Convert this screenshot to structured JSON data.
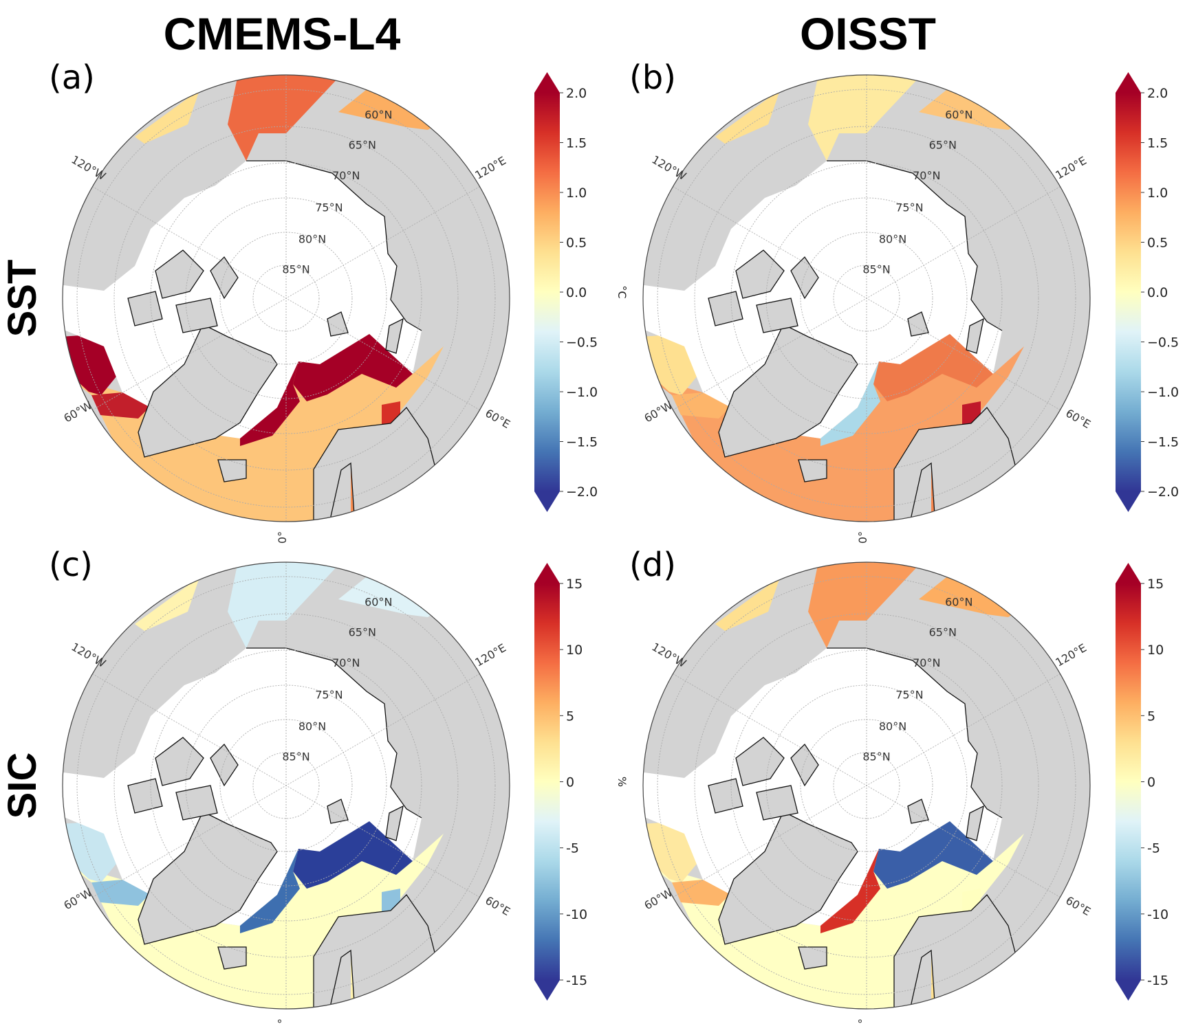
{
  "columns": [
    "CMEMS-L4",
    "OISST"
  ],
  "rows": [
    "SST",
    "SIC"
  ],
  "lat_labels": [
    "60°N",
    "65°N",
    "70°N",
    "75°N",
    "80°N",
    "85°N"
  ],
  "lon_labels": {
    "w120": "120°W",
    "e120": "120°E",
    "w60": "60°W",
    "e60": "60°E",
    "zero": "0°"
  },
  "colorbars": [
    {
      "variable": "SST",
      "unit": "°C",
      "min": -2.0,
      "max": 2.0,
      "extend": "both",
      "ticks": [
        "2.0",
        "1.5",
        "1.0",
        "0.5",
        "0.0",
        "−0.5",
        "−1.0",
        "−1.5",
        "−2.0"
      ]
    },
    {
      "variable": "SIC",
      "unit": "%",
      "min": -15,
      "max": 15,
      "extend": "both",
      "ticks": [
        "15",
        "10",
        "5",
        "0",
        "-5",
        "-10",
        "-15"
      ]
    }
  ],
  "colormap": [
    "#313695",
    "#4575b4",
    "#74add1",
    "#abd9e9",
    "#e0f3f8",
    "#ffffbf",
    "#fee090",
    "#fdae61",
    "#f46d43",
    "#d73027",
    "#a50026"
  ],
  "panels": [
    {
      "label": "(a)",
      "dataset": "CMEMS-L4",
      "variable": "SST",
      "regions": {
        "atlantic": "#fdc57a",
        "pacific": "#ee6a42",
        "okhotsk": "#fcae61",
        "alaska": "#fee090",
        "barents_edge": "#a50026",
        "greenland_edge": "#a50026",
        "baffin": "#c21f2b",
        "hudson": "#a50026",
        "baltic": "#f98e52",
        "whitesea": "#d73027"
      }
    },
    {
      "label": "(b)",
      "dataset": "OISST",
      "variable": "SST",
      "regions": {
        "atlantic": "#f9a064",
        "pacific": "#feeaa0",
        "okhotsk": "#fdc57a",
        "alaska": "#fee090",
        "barents_edge": "#ef7a4a",
        "greenland_edge": "#abd9e9",
        "baffin": "#fdb56a",
        "hudson": "#fee090",
        "baltic": "#f6874f",
        "whitesea": "#c0182a"
      }
    },
    {
      "label": "(c)",
      "dataset": "CMEMS-L4",
      "variable": "SIC",
      "regions": {
        "atlantic": "#ffffc4",
        "pacific": "#d6eef5",
        "okhotsk": "#dff2f7",
        "alaska": "#fff3b0",
        "barents_edge": "#2b3f99",
        "greenland_edge": "#3e6fb0",
        "baffin": "#8fc2de",
        "hudson": "#c8e6f0",
        "baltic": "#fff3b0",
        "whitesea": "#8fc2de"
      }
    },
    {
      "label": "(d)",
      "dataset": "OISST",
      "variable": "SIC",
      "regions": {
        "atlantic": "#ffffc4",
        "pacific": "#f99a5a",
        "okhotsk": "#fdae61",
        "alaska": "#fee090",
        "barents_edge": "#3a5fa8",
        "greenland_edge": "#d73027",
        "baffin": "#fdb56a",
        "hudson": "#fee8a0",
        "baltic": "#fee090",
        "whitesea": "#ffffbf"
      }
    }
  ]
}
